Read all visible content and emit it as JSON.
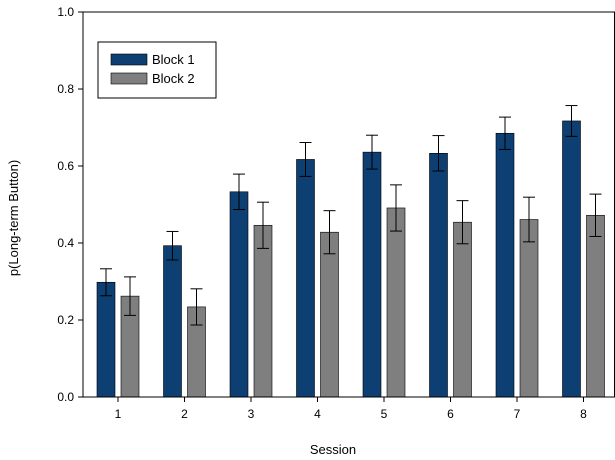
{
  "chart_data": {
    "type": "bar",
    "title": "",
    "xlabel": "Session",
    "ylabel": "p(Long-term Button)",
    "ylim": [
      0.0,
      1.0
    ],
    "yticks": [
      "0.0",
      "0.2",
      "0.4",
      "0.6",
      "0.8",
      "1.0"
    ],
    "categories": [
      "1",
      "2",
      "3",
      "4",
      "5",
      "6",
      "7",
      "8"
    ],
    "series": [
      {
        "name": "Block 1",
        "color": "#0d3f73",
        "values": [
          0.298,
          0.393,
          0.533,
          0.617,
          0.636,
          0.633,
          0.685,
          0.717
        ],
        "errors": [
          0.035,
          0.037,
          0.046,
          0.044,
          0.044,
          0.046,
          0.042,
          0.04
        ]
      },
      {
        "name": "Block 2",
        "color": "#7f7f7f",
        "values": [
          0.262,
          0.234,
          0.446,
          0.428,
          0.491,
          0.454,
          0.461,
          0.472
        ],
        "errors": [
          0.05,
          0.047,
          0.06,
          0.056,
          0.06,
          0.056,
          0.058,
          0.055
        ]
      }
    ],
    "legend": {
      "position": "top-left"
    },
    "grid": false
  }
}
